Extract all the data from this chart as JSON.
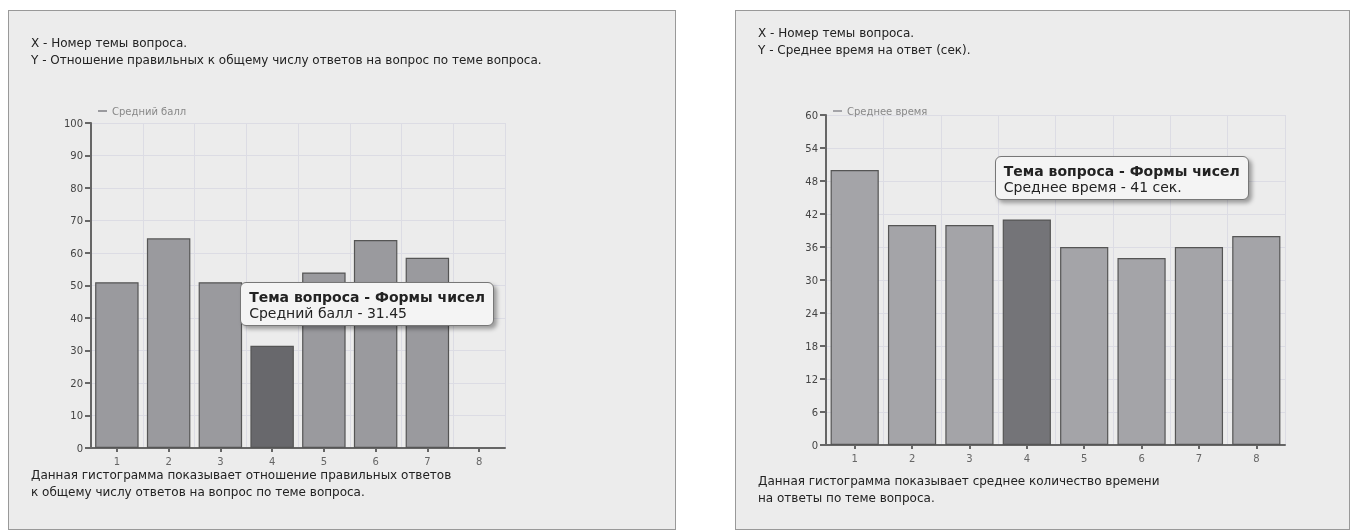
{
  "chart_data": [
    {
      "type": "bar",
      "xlabel": "X - Номер темы вопроса.",
      "ylabel": "Y - Отношение правильных к общему числу ответов на вопрос по теме вопроса.",
      "categories": [
        "1",
        "2",
        "3",
        "4",
        "5",
        "6",
        "7",
        "8"
      ],
      "series": [
        {
          "name": "Средний балл",
          "color": "#9a9a9e",
          "colors": [
            "#9a9a9e",
            "#9a9a9e",
            "#9a9a9e",
            "#68686c",
            "#9a9a9e",
            "#9a9a9e",
            "#9a9a9e",
            "#9a9a9e"
          ],
          "values": [
            51,
            64.5,
            51,
            31.45,
            54,
            64,
            58.5,
            null
          ]
        }
      ],
      "ylim": [
        0,
        100
      ],
      "yticks": [
        0,
        10,
        20,
        30,
        40,
        50,
        60,
        70,
        80,
        90,
        100
      ],
      "grid": true,
      "legend": "top left",
      "annotations": [
        {
          "text": "Тема вопроса - Формы чисел\nСредний балл - 31.45",
          "x": "4",
          "y": 31.45
        },
        "Данная гистограмма показывает отношение правильных ответов\nк общему числу ответов на вопрос по теме вопроса."
      ]
    },
    {
      "type": "bar",
      "xlabel": "X - Номер темы вопроса.",
      "ylabel": "Y - Среднее время на ответ (сек).",
      "categories": [
        "1",
        "2",
        "3",
        "4",
        "5",
        "6",
        "7",
        "8"
      ],
      "series": [
        {
          "name": "Среднее время",
          "color": "#a4a4a8",
          "colors": [
            "#a4a4a8",
            "#a4a4a8",
            "#a4a4a8",
            "#747478",
            "#a4a4a8",
            "#a4a4a8",
            "#a4a4a8",
            "#a4a4a8"
          ],
          "values": [
            50,
            40,
            40,
            41,
            36,
            34,
            36,
            38
          ]
        }
      ],
      "ylim": [
        0,
        60
      ],
      "yticks": [
        0,
        6,
        12,
        18,
        24,
        30,
        36,
        42,
        48,
        54,
        60
      ],
      "grid": true,
      "legend": "top left",
      "annotations": [
        {
          "text": "Тема вопроса - Формы чисел\nСреднее время - 41 сек.",
          "x": "4",
          "y": 41
        },
        "Данная гистограмма показывает среднее количество времени\nна ответы по теме вопроса."
      ]
    }
  ]
}
